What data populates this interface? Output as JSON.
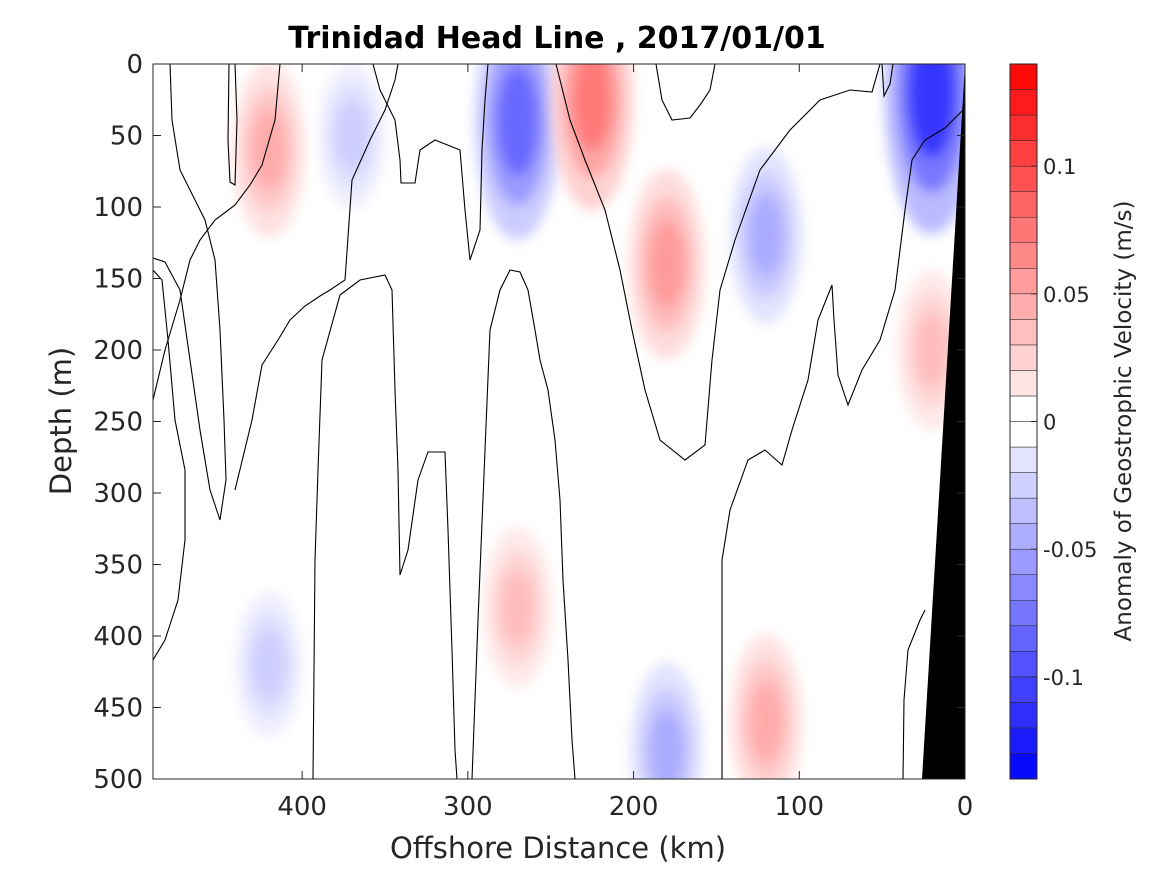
{
  "chart_data": {
    "type": "heatmap",
    "title": "Trinidad Head Line , 2017/01/01",
    "xlabel": "Offshore Distance (km)",
    "ylabel": "Depth (m)",
    "xlim": [
      490,
      0
    ],
    "ylim": [
      0,
      500
    ],
    "x_reversed": true,
    "y_reversed": true,
    "xticks": [
      400,
      300,
      200,
      100,
      0
    ],
    "xtick_labels": [
      "400",
      "300",
      "200",
      "100",
      "0"
    ],
    "yticks": [
      0,
      50,
      100,
      150,
      200,
      250,
      300,
      350,
      400,
      450,
      500
    ],
    "ytick_labels": [
      "0",
      "50",
      "100",
      "150",
      "200",
      "250",
      "300",
      "350",
      "400",
      "450",
      "500"
    ],
    "colorbar": {
      "label": "Anomaly of Geostrophic Velocity (m/s)",
      "range": [
        -0.14,
        0.14
      ],
      "level_step": 0.01,
      "ticks": [
        0.1,
        0.05,
        0,
        -0.05,
        -0.1
      ],
      "tick_labels": [
        "0.1",
        "0.05",
        "0",
        "-0.05",
        "-0.1"
      ],
      "colormap": "blue-white-red",
      "positive_color": "#ff0000",
      "negative_color": "#0000ff"
    },
    "zero_contour": true,
    "bathymetry_color": "#000000",
    "features": [
      {
        "x": 20,
        "depth": 20,
        "value": -0.12
      },
      {
        "x": 270,
        "depth": 40,
        "value": -0.09
      },
      {
        "x": 225,
        "depth": 25,
        "value": 0.08
      },
      {
        "x": 180,
        "depth": 140,
        "value": 0.06
      },
      {
        "x": 420,
        "depth": 60,
        "value": 0.05
      },
      {
        "x": 370,
        "depth": 50,
        "value": -0.03
      },
      {
        "x": 120,
        "depth": 120,
        "value": -0.05
      },
      {
        "x": 270,
        "depth": 380,
        "value": 0.04
      },
      {
        "x": 180,
        "depth": 480,
        "value": -0.05
      },
      {
        "x": 120,
        "depth": 460,
        "value": 0.05
      },
      {
        "x": 420,
        "depth": 420,
        "value": -0.03
      },
      {
        "x": 20,
        "depth": 200,
        "value": 0.04
      }
    ]
  }
}
